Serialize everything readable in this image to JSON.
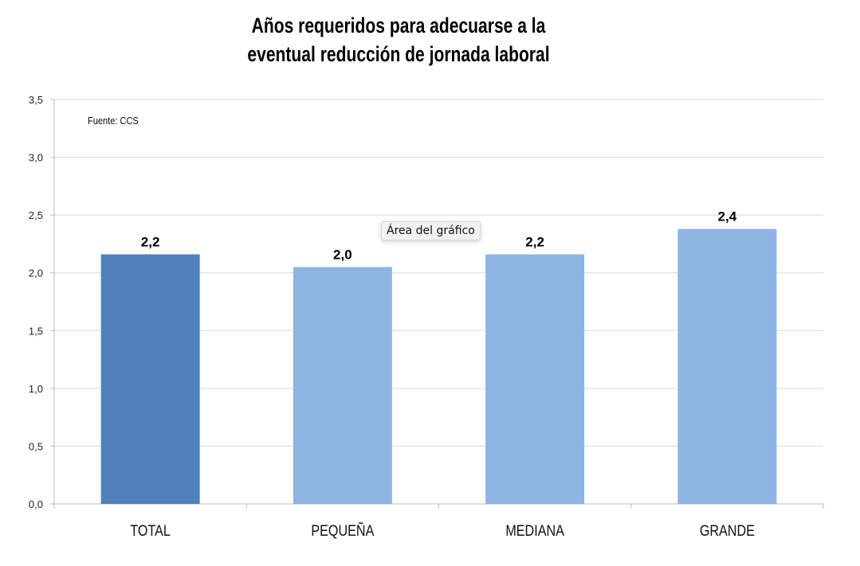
{
  "chart_data": {
    "type": "bar",
    "title": [
      "Años requeridos para adecuarse a la",
      "eventual reducción de jornada laboral"
    ],
    "source": "Fuente: CCS",
    "categories": [
      "TOTAL",
      "PEQUEÑA",
      "MEDIANA",
      "GRANDE"
    ],
    "values": [
      2.16,
      2.05,
      2.16,
      2.38
    ],
    "data_labels": [
      "2,2",
      "2,0",
      "2,2",
      "2,4"
    ],
    "colors": [
      "#4f81bd",
      "#8eb4e3",
      "#8eb4e3",
      "#8eb4e3"
    ],
    "ylim": [
      0,
      3.5
    ],
    "yticks": [
      0,
      0.5,
      1,
      1.5,
      2,
      2.5,
      3,
      3.5
    ],
    "ytick_labels": [
      "0,0",
      "0,5",
      "1,0",
      "1,5",
      "2,0",
      "2,5",
      "3,0",
      "3,5"
    ],
    "xlabel": "",
    "ylabel": "",
    "grid": true
  },
  "tooltip": "Área del gráfico"
}
